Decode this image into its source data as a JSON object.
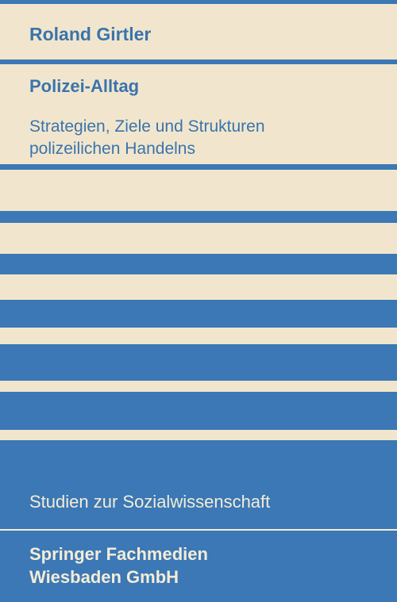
{
  "cover": {
    "author": "Roland Girtler",
    "title": "Polizei-Alltag",
    "subtitle_lines": [
      "Strategien, Ziele und Strukturen",
      "polizeilichen Handelns"
    ],
    "series": "Studien zur Sozialwissenschaft",
    "publisher_lines": [
      "Springer Fachmedien",
      "Wiesbaden GmbH"
    ]
  },
  "colors": {
    "background": "#f1e6cd",
    "stripe": "#3b78b5",
    "text_on_stripe": "#f4ecd8"
  }
}
